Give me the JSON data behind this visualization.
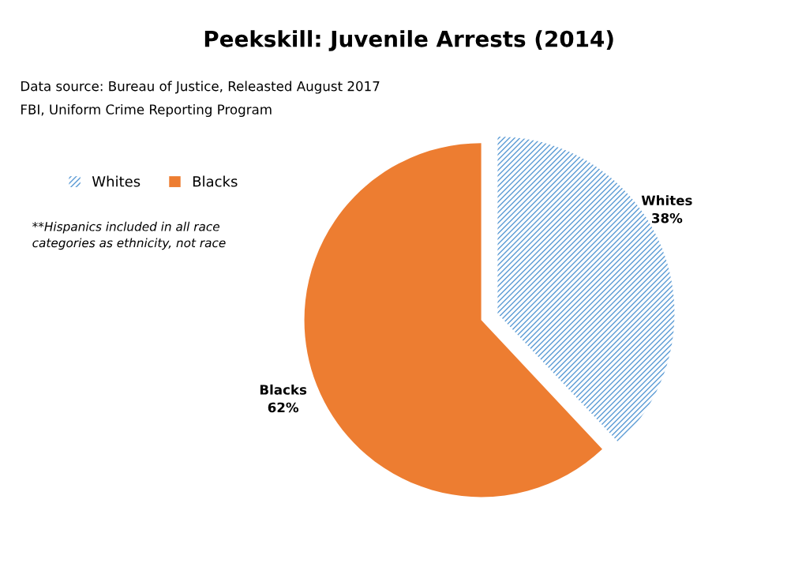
{
  "chart_data": {
    "type": "pie",
    "title": "Peekskill: Juvenile Arrests (2014)",
    "categories": [
      "Whites",
      "Blacks"
    ],
    "values": [
      38,
      62
    ],
    "colors": [
      "#5b9bd5",
      "#ed7d31"
    ],
    "value_labels": [
      "38%",
      "62%"
    ],
    "legend": "top left",
    "annotations": [
      "Data source: Bureau of Justice, Releasted August 2017",
      "FBI, Uniform Crime Reporting Program",
      "**Hispanics included in all race categories as ethnicity, not race"
    ]
  }
}
